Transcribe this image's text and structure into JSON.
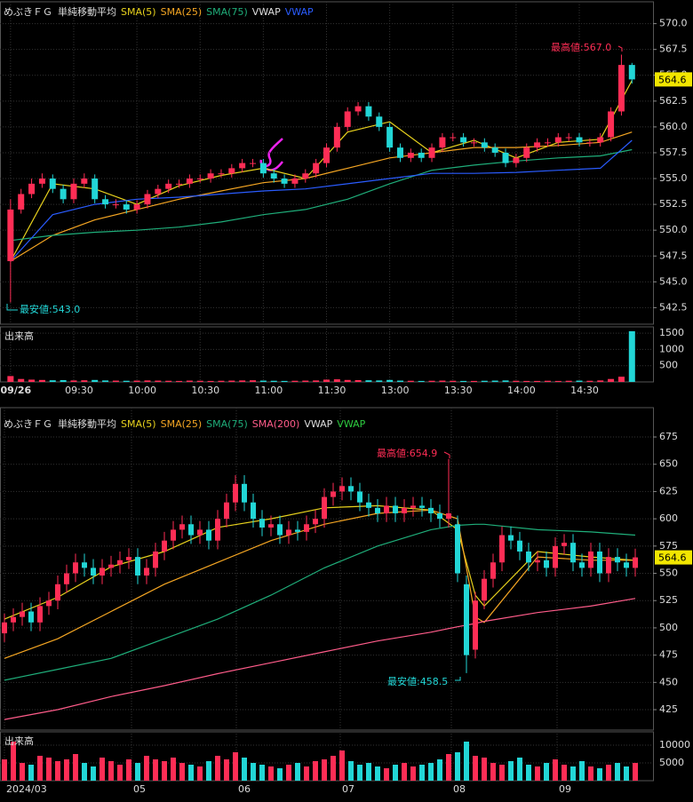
{
  "chart_data": [
    {
      "type": "candlestick",
      "title": "めぶきＦＧ",
      "indicator": "単純移動平均",
      "legend": [
        {
          "text": "SMA(5)",
          "color": "#e8d21d"
        },
        {
          "text": "SMA(25)",
          "color": "#f5a623"
        },
        {
          "text": "SMA(75)",
          "color": "#1fae7a"
        },
        {
          "text": "VWAP",
          "color": "#dddddd"
        },
        {
          "text": "VWAP",
          "color": "#2a5cff"
        }
      ],
      "up_color": "#ff2d55",
      "down_color": "#22d6d6",
      "open": [
        547,
        552,
        553.5,
        554.5,
        555,
        554,
        553,
        554.5,
        555,
        553,
        552.5,
        552.5,
        552,
        552.5,
        553.5,
        554,
        554.5,
        554.5,
        555,
        555,
        555.5,
        555.5,
        556,
        556.5,
        556.5,
        555.5,
        555,
        554.5,
        555,
        555.5,
        556.5,
        558,
        560,
        561.5,
        562,
        561,
        560,
        558,
        557,
        557.5,
        557,
        558,
        559,
        559,
        558.5,
        558.5,
        558,
        557.5,
        556.5,
        557,
        558,
        558.5,
        558.5,
        559,
        559,
        558.5,
        558.5,
        559,
        561.5,
        566
      ],
      "high": [
        553,
        554,
        555,
        555.5,
        555.4,
        554.4,
        555,
        555.5,
        555.4,
        553.4,
        553,
        552.9,
        552.9,
        553.9,
        554.4,
        554.9,
        554.9,
        555.4,
        555.4,
        555.9,
        555.9,
        556.4,
        556.9,
        556.9,
        556.9,
        555.9,
        555.4,
        555.4,
        555.9,
        556.9,
        558.4,
        560.4,
        561.9,
        562.4,
        562.4,
        561.4,
        560.4,
        558.4,
        557.9,
        557.9,
        558.4,
        559.4,
        559.4,
        559.4,
        558.9,
        558.9,
        558.4,
        557.9,
        557.4,
        558.4,
        558.9,
        558.9,
        559.4,
        559.4,
        559.4,
        558.9,
        559.4,
        561.9,
        567,
        566.2
      ],
      "low": [
        543,
        551.6,
        553.1,
        554.1,
        553.6,
        552.6,
        552.6,
        554.1,
        552.6,
        552.1,
        552.1,
        551.6,
        551.6,
        552.1,
        553.1,
        553.6,
        554.1,
        554.1,
        554.6,
        554.6,
        555.1,
        555.1,
        555.6,
        556.1,
        555.1,
        554.6,
        554.1,
        554.1,
        554.6,
        555.1,
        556.1,
        557.6,
        559.6,
        561.1,
        560.6,
        559.6,
        557.6,
        556.6,
        556.6,
        556.6,
        556.6,
        557.6,
        558.6,
        558.1,
        558.1,
        557.6,
        557.1,
        556.1,
        556.1,
        556.6,
        557.6,
        558.1,
        558.1,
        558.6,
        558.1,
        558.1,
        558.1,
        558.6,
        561.1,
        564.2
      ],
      "close": [
        552,
        553.5,
        554.5,
        555,
        554,
        553,
        554.5,
        555,
        553,
        552.5,
        552.5,
        552,
        552.5,
        553.5,
        554,
        554.5,
        554.5,
        555,
        555,
        555.5,
        555.5,
        556,
        556.5,
        556.5,
        555.5,
        555,
        554.5,
        555,
        555.5,
        556.5,
        558,
        560,
        561.5,
        562,
        561,
        560,
        558,
        557,
        557.5,
        557,
        558,
        559,
        559,
        558.5,
        558.5,
        558,
        557.5,
        556.5,
        557,
        558,
        558.5,
        558.5,
        559,
        559,
        558.5,
        558.5,
        559,
        561.5,
        566,
        564.6
      ],
      "lines": [
        {
          "color": "#e8d21d",
          "x": [
            0,
            4,
            8,
            12,
            16,
            20,
            24,
            28,
            32,
            36,
            40,
            44,
            48,
            52,
            56,
            59
          ],
          "values": [
            547,
            554.5,
            554,
            552.5,
            554.3,
            555.3,
            556,
            555,
            559.5,
            560.5,
            557.5,
            558.7,
            557,
            558.5,
            558.8,
            564.5
          ]
        },
        {
          "color": "#f5a623",
          "x": [
            0,
            4,
            8,
            12,
            16,
            20,
            24,
            28,
            32,
            36,
            40,
            44,
            48,
            52,
            56,
            59
          ],
          "values": [
            547,
            549.5,
            551,
            552,
            553,
            553.8,
            554.6,
            555,
            556,
            557,
            557.5,
            558,
            558,
            558.2,
            558.5,
            559.5
          ]
        },
        {
          "color": "#1fae7a",
          "x": [
            0,
            4,
            8,
            12,
            16,
            20,
            24,
            28,
            32,
            36,
            40,
            44,
            48,
            52,
            56,
            59
          ],
          "values": [
            549,
            549.5,
            549.8,
            550,
            550.3,
            550.8,
            551.5,
            552,
            553,
            554.5,
            555.8,
            556.3,
            556.7,
            557,
            557.2,
            557.8
          ]
        },
        {
          "color": "#2a5cff",
          "x": [
            0,
            4,
            8,
            12,
            16,
            20,
            24,
            28,
            32,
            36,
            40,
            44,
            48,
            52,
            56,
            59
          ],
          "values": [
            547,
            551.5,
            552.5,
            553,
            553.2,
            553.5,
            553.8,
            554,
            554.5,
            555,
            555.5,
            555.5,
            555.6,
            555.8,
            556,
            558.7
          ]
        }
      ],
      "ylim": [
        540.9,
        571.6
      ],
      "yticks": [
        542.5,
        {
          "value": 545,
          "label": "545.0"
        },
        547.5,
        {
          "value": 550,
          "label": "550.0"
        },
        552.5,
        {
          "value": 555,
          "label": "555.0"
        },
        557.5,
        {
          "value": 560,
          "label": "560.0"
        },
        562.5,
        {
          "value": 565,
          "label": "565.0"
        },
        567.5,
        {
          "value": 570,
          "label": "570.0"
        }
      ],
      "xlim": [
        -1,
        61
      ],
      "xticks": [
        {
          "value": 0,
          "label": "09/26"
        },
        {
          "value": 6,
          "label": "09:30"
        },
        {
          "value": 12,
          "label": "10:00"
        },
        {
          "value": 18,
          "label": "10:30"
        },
        {
          "value": 24,
          "label": "11:00"
        },
        {
          "value": 30,
          "label": "11:30"
        },
        {
          "value": 36,
          "label": "13:00"
        },
        {
          "value": 42,
          "label": "13:30"
        },
        {
          "value": 48,
          "label": "14:00"
        },
        {
          "value": 54,
          "label": "14:30"
        }
      ],
      "last_price": 564.6,
      "high_label": "最高値:567.0",
      "low_label": "最安値:543.0",
      "volume": {
        "label": "出来高",
        "ylim": [
          0,
          1640
        ],
        "yticks": [
          500,
          1000,
          1500
        ],
        "values": [
          180,
          90,
          70,
          60,
          50,
          55,
          45,
          50,
          60,
          45,
          40,
          35,
          40,
          45,
          40,
          35,
          30,
          40,
          35,
          30,
          35,
          40,
          45,
          50,
          40,
          35,
          30,
          35,
          40,
          45,
          70,
          80,
          60,
          55,
          50,
          45,
          60,
          40,
          35,
          30,
          35,
          40,
          35,
          30,
          30,
          35,
          40,
          45,
          35,
          30,
          30,
          35,
          30,
          35,
          40,
          35,
          45,
          90,
          160,
          1560
        ]
      }
    },
    {
      "type": "candlestick",
      "title": "めぶきＦＧ",
      "indicator": "単純移動平均",
      "legend": [
        {
          "text": "SMA(5)",
          "color": "#e8d21d"
        },
        {
          "text": "SMA(25)",
          "color": "#f5a623"
        },
        {
          "text": "SMA(75)",
          "color": "#1fae7a"
        },
        {
          "text": "SMA(200)",
          "color": "#ff5c8a"
        },
        {
          "text": "VWAP",
          "color": "#dddddd"
        },
        {
          "text": "VWAP",
          "color": "#2ecc40"
        }
      ],
      "up_color": "#ff2d55",
      "down_color": "#22d6d6",
      "open": [
        495,
        505,
        510,
        515,
        505,
        520,
        525,
        540,
        550,
        560,
        555,
        548,
        555,
        558,
        562,
        565,
        548,
        555,
        570,
        580,
        590,
        595,
        585,
        590,
        580,
        600,
        615,
        632,
        615,
        600,
        592,
        595,
        585,
        590,
        588,
        595,
        600,
        620,
        625,
        630,
        625,
        615,
        610,
        605,
        612,
        605,
        610,
        612,
        610,
        605,
        600,
        595,
        540,
        480,
        525,
        545,
        560,
        585,
        580,
        570,
        560,
        562,
        555,
        575,
        578,
        560,
        555,
        570,
        550,
        565,
        560,
        555
      ],
      "high": [
        513,
        518,
        523,
        523,
        528,
        533,
        548,
        558,
        568,
        568,
        563,
        563,
        566,
        570,
        573,
        573,
        563,
        578,
        588,
        598,
        603,
        603,
        598,
        598,
        608,
        623,
        640,
        640,
        623,
        608,
        603,
        603,
        598,
        598,
        603,
        608,
        628,
        633,
        638,
        638,
        633,
        623,
        618,
        620,
        620,
        618,
        620,
        620,
        618,
        613,
        654.9,
        603,
        548,
        533,
        553,
        568,
        593,
        593,
        588,
        578,
        570,
        570,
        583,
        586,
        586,
        568,
        578,
        578,
        573,
        573,
        568,
        572.6
      ],
      "low": [
        487,
        497,
        502,
        497,
        497,
        512,
        517,
        532,
        542,
        547,
        540,
        540,
        547,
        550,
        554,
        540,
        540,
        547,
        562,
        572,
        582,
        577,
        577,
        572,
        572,
        592,
        607,
        607,
        592,
        584,
        584,
        577,
        577,
        580,
        580,
        587,
        592,
        612,
        617,
        617,
        607,
        602,
        597,
        597,
        597,
        597,
        602,
        602,
        597,
        592,
        592,
        542,
        458.5,
        472,
        517,
        537,
        552,
        572,
        562,
        552,
        552,
        547,
        547,
        567,
        552,
        547,
        547,
        542,
        542,
        552,
        547,
        547
      ],
      "close": [
        505,
        510,
        515,
        505,
        520,
        525,
        540,
        550,
        560,
        555,
        548,
        555,
        558,
        562,
        565,
        548,
        555,
        570,
        580,
        590,
        595,
        585,
        590,
        580,
        600,
        615,
        632,
        615,
        600,
        592,
        595,
        585,
        590,
        588,
        595,
        600,
        620,
        625,
        630,
        625,
        615,
        610,
        605,
        612,
        605,
        610,
        612,
        610,
        605,
        600,
        605,
        550,
        475,
        525,
        545,
        560,
        585,
        580,
        570,
        560,
        562,
        555,
        575,
        578,
        560,
        555,
        570,
        550,
        565,
        560,
        555,
        564.6
      ],
      "lines": [
        {
          "color": "#e8d21d",
          "x": [
            0,
            6,
            12,
            18,
            24,
            30,
            36,
            42,
            48,
            51,
            53,
            54,
            60,
            66,
            71
          ],
          "values": [
            508,
            528,
            556,
            570,
            592,
            600,
            610,
            612,
            608,
            590,
            530,
            520,
            570,
            565,
            562
          ]
        },
        {
          "color": "#f5a623",
          "x": [
            0,
            6,
            12,
            18,
            24,
            30,
            36,
            42,
            48,
            51,
            53,
            54,
            60,
            66,
            71
          ],
          "values": [
            472,
            490,
            515,
            540,
            560,
            580,
            595,
            605,
            608,
            600,
            510,
            505,
            565,
            562,
            562
          ]
        },
        {
          "color": "#1fae7a",
          "x": [
            0,
            6,
            12,
            18,
            24,
            30,
            36,
            42,
            48,
            51,
            53,
            54,
            60,
            66,
            71
          ],
          "values": [
            452,
            462,
            472,
            490,
            508,
            530,
            555,
            575,
            590,
            594,
            595,
            595,
            590,
            588,
            585
          ]
        },
        {
          "color": "#ff5c8a",
          "x": [
            0,
            6,
            12,
            18,
            24,
            30,
            36,
            42,
            48,
            51,
            53,
            54,
            60,
            66,
            71
          ],
          "values": [
            416,
            425,
            437,
            447,
            458,
            468,
            478,
            488,
            496,
            501,
            504,
            506,
            514,
            520,
            527
          ]
        }
      ],
      "ylim": [
        406.3,
        697
      ],
      "yticks": [
        425,
        450,
        475,
        500,
        525,
        550,
        575,
        600,
        625,
        650,
        675
      ],
      "xlim": [
        -0.5,
        73
      ],
      "xticks": [
        {
          "value": 0,
          "label": "2024/03"
        },
        {
          "value": 14.3,
          "label": "05"
        },
        {
          "value": 26.1,
          "label": "06"
        },
        {
          "value": 37.8,
          "label": "07"
        },
        {
          "value": 50.3,
          "label": "08"
        },
        {
          "value": 62.2,
          "label": "09"
        }
      ],
      "last_price": 564.6,
      "high_label": "最高値:654.9",
      "low_label": "最安値:458.5",
      "volume": {
        "label": "出来高",
        "ylim": [
          0,
          13250
        ],
        "yticks": [
          5000,
          10000
        ],
        "values": [
          6000,
          11000,
          5000,
          4500,
          7000,
          6500,
          5500,
          6000,
          7500,
          5000,
          4000,
          6500,
          5500,
          4500,
          6000,
          5000,
          7000,
          6000,
          5500,
          6500,
          5000,
          4500,
          4000,
          5500,
          7000,
          6000,
          8000,
          6500,
          5000,
          4500,
          4000,
          3500,
          4500,
          5000,
          4000,
          5500,
          6000,
          7000,
          8500,
          5500,
          4500,
          5000,
          4000,
          3500,
          4500,
          5000,
          4000,
          4500,
          5000,
          6000,
          7500,
          8000,
          11000,
          7000,
          6500,
          5000,
          4500,
          5500,
          6500,
          4500,
          4000,
          5000,
          6000,
          4500,
          4000,
          5500,
          4000,
          3500,
          4500,
          5000,
          4000,
          5000
        ]
      }
    }
  ]
}
